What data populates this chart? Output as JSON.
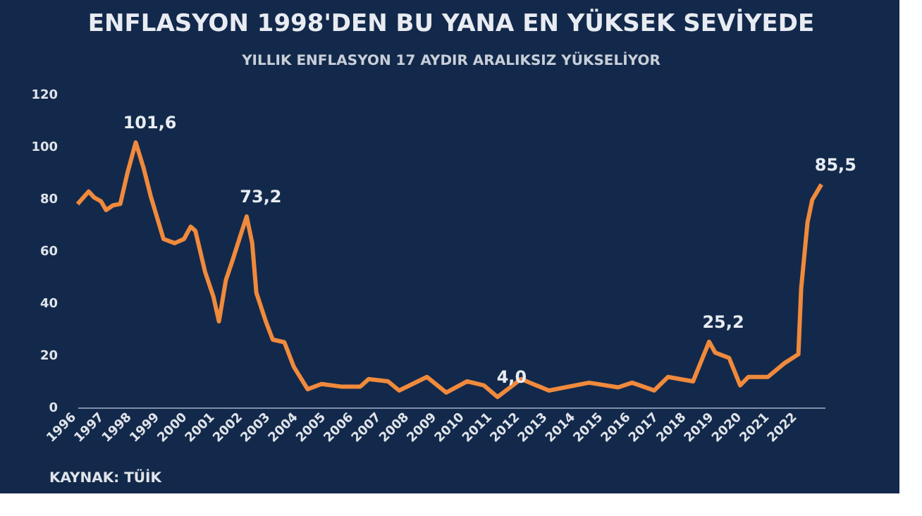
{
  "chart_data": {
    "type": "line",
    "title": "ENFLASYON 1998'DEN BU YANA EN YÜKSEK SEVİYEDE",
    "subtitle": "YILLIK ENFLASYON 17 AYDIR ARALIKSIZ YÜKSELİYOR",
    "x": [
      1996.0,
      1996.4,
      1996.6,
      1996.85,
      1997.03,
      1997.28,
      1997.54,
      1997.8,
      1998.1,
      1998.39,
      1998.64,
      1999.1,
      1999.5,
      1999.84,
      2000.08,
      2000.25,
      2000.6,
      2000.9,
      2001.1,
      2001.35,
      2001.6,
      2001.86,
      2002.1,
      2002.3,
      2002.45,
      2002.79,
      2003.04,
      2003.46,
      2003.8,
      2004.3,
      2004.8,
      2005.5,
      2006.2,
      2006.5,
      2007.2,
      2007.6,
      2008.6,
      2009.3,
      2010.05,
      2010.65,
      2011.15,
      2012.0,
      2013.0,
      2014.45,
      2015.5,
      2016.0,
      2016.8,
      2017.3,
      2018.2,
      2018.78,
      2019.0,
      2019.5,
      2019.9,
      2020.2,
      2020.9,
      2021.5,
      2022.0,
      2022.1,
      2022.33,
      2022.5,
      2022.83
    ],
    "series": [
      {
        "color": "#f08a3c",
        "values": [
          78,
          82.8,
          80.5,
          79,
          75.7,
          77.5,
          78,
          89.9,
          101.6,
          91.5,
          81,
          64.6,
          63,
          64.6,
          69.3,
          67.7,
          52,
          42.5,
          33,
          48.8,
          56.7,
          65.4,
          73.2,
          63,
          44,
          33,
          26,
          25,
          15.6,
          7,
          9,
          8,
          8,
          10.9,
          10,
          6.5,
          11.7,
          5.7,
          10,
          8.5,
          4.0,
          10.9,
          6.5,
          9.5,
          7.7,
          9.5,
          6.5,
          11.7,
          10,
          25.2,
          21,
          19,
          8.5,
          11.7,
          11.7,
          17,
          20.4,
          45.6,
          71,
          79.6,
          85.5
        ]
      }
    ],
    "xlim": [
      1996,
      2022.95
    ],
    "xticks": [
      1996,
      1997,
      1998,
      1999,
      2000,
      2001,
      2002,
      2003,
      2004,
      2005,
      2006,
      2007,
      2008,
      2009,
      2010,
      2011,
      2012,
      2013,
      2014,
      2015,
      2016,
      2017,
      2018,
      2019,
      2020,
      2021,
      2022
    ],
    "ylim": [
      0,
      120
    ],
    "yticks": [
      0,
      20,
      40,
      60,
      80,
      100,
      120
    ],
    "grid": false,
    "marker": "none",
    "line_style": "solid",
    "annotations": [
      {
        "text": "101,6",
        "x": 1998.1,
        "y": 101.6
      },
      {
        "text": "73,2",
        "x": 2002.1,
        "y": 73.2
      },
      {
        "text": "4,0",
        "x": 2011.15,
        "y": 4.0
      },
      {
        "text": "25,2",
        "x": 2018.78,
        "y": 25.2
      },
      {
        "text": "85,5",
        "x": 2022.83,
        "y": 85.5
      },
      "KAYNAK: TÜİK"
    ]
  }
}
